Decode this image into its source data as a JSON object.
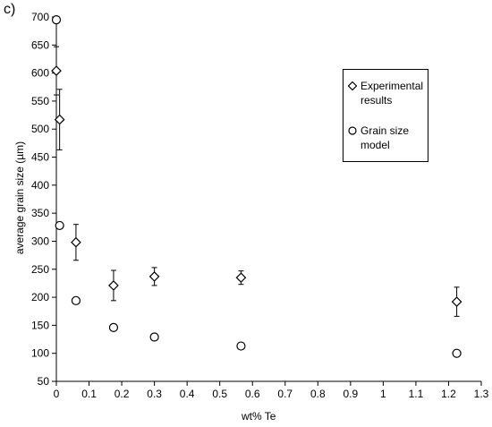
{
  "panel_label": "c)",
  "chart_data": {
    "type": "scatter",
    "title": "",
    "xlabel": "wt% Te",
    "ylabel": "average grain size (µm)",
    "xlim": [
      0,
      1.3
    ],
    "ylim": [
      50,
      700
    ],
    "x_ticks": [
      0,
      0.1,
      0.2,
      0.3,
      0.4,
      0.5,
      0.6,
      0.7,
      0.8,
      0.9,
      1,
      1.1,
      1.2,
      1.3
    ],
    "x_tick_labels": [
      "0",
      "0.1",
      "0.2",
      "0.3",
      "0.4",
      "0.5",
      "0.6",
      "0.7",
      "0.8",
      "0.9",
      "1",
      "1.1",
      "1.2",
      "1.3"
    ],
    "y_ticks": [
      50,
      100,
      150,
      200,
      250,
      300,
      350,
      400,
      450,
      500,
      550,
      600,
      650,
      700
    ],
    "y_tick_labels": [
      "50",
      "100",
      "150",
      "200",
      "250",
      "300",
      "350",
      "400",
      "450",
      "500",
      "550",
      "600",
      "650",
      "700"
    ],
    "grid": false,
    "legend_position": "top-right",
    "series": [
      {
        "name": "Experimental results",
        "marker": "diamond",
        "points": [
          {
            "x": 0.0,
            "y": 604,
            "err": 43
          },
          {
            "x": 0.01,
            "y": 517,
            "err": 54
          },
          {
            "x": 0.06,
            "y": 298,
            "err": 32
          },
          {
            "x": 0.175,
            "y": 221,
            "err": 27
          },
          {
            "x": 0.3,
            "y": 237,
            "err": 16
          },
          {
            "x": 0.565,
            "y": 235,
            "err": 12
          },
          {
            "x": 1.225,
            "y": 192,
            "err": 26
          }
        ]
      },
      {
        "name": "Grain size model",
        "marker": "circle",
        "points": [
          {
            "x": 0.0,
            "y": 695
          },
          {
            "x": 0.01,
            "y": 328
          },
          {
            "x": 0.06,
            "y": 194
          },
          {
            "x": 0.175,
            "y": 146
          },
          {
            "x": 0.3,
            "y": 129
          },
          {
            "x": 0.565,
            "y": 113
          },
          {
            "x": 1.225,
            "y": 100
          }
        ]
      }
    ]
  },
  "legend": {
    "items": [
      {
        "label": "Experimental results",
        "symbol": "diamond-icon"
      },
      {
        "label": "Grain size model",
        "symbol": "circle-icon"
      }
    ]
  }
}
